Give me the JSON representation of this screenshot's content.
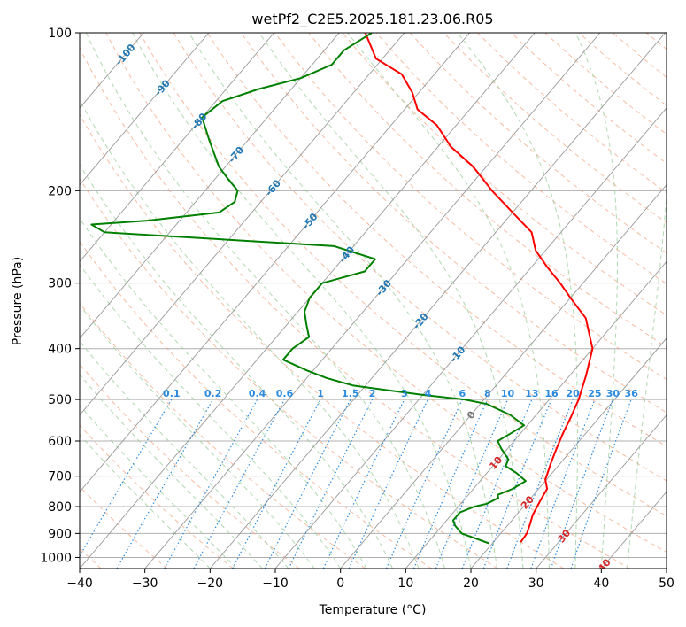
{
  "chart_data": {
    "type": "line",
    "title": "wetPf2_C2E5.2025.181.23.06.R05",
    "xlabel": "Temperature (°C)",
    "ylabel": "Pressure (hPa)",
    "xlim": [
      -40,
      50
    ],
    "ylim": [
      1050,
      100
    ],
    "y_scale": "log",
    "x_ticks": [
      -40,
      -30,
      -20,
      -10,
      0,
      10,
      20,
      30,
      40,
      50
    ],
    "y_ticks": [
      100,
      200,
      300,
      400,
      500,
      600,
      700,
      800,
      900,
      1000
    ],
    "grid": true,
    "skew": "skew-T log-p diagram",
    "series": [
      {
        "name": "",
        "color": "#ff0000",
        "points": [
          [
            24.2,
            935
          ],
          [
            24,
            900
          ],
          [
            23.3,
            865
          ],
          [
            22.5,
            830
          ],
          [
            21.8,
            780
          ],
          [
            21.3,
            740
          ],
          [
            19.8,
            710
          ],
          [
            19.3,
            690
          ],
          [
            18.5,
            660
          ],
          [
            17.5,
            620
          ],
          [
            16.5,
            580
          ],
          [
            15.6,
            540
          ],
          [
            14.5,
            500
          ],
          [
            12.5,
            450
          ],
          [
            10,
            400
          ],
          [
            5,
            350
          ],
          [
            0,
            320
          ],
          [
            -3.5,
            300
          ],
          [
            -7.5,
            280
          ],
          [
            -11.5,
            260
          ],
          [
            -14.5,
            240
          ],
          [
            -20,
            220
          ],
          [
            -26,
            200
          ],
          [
            -32,
            180
          ],
          [
            -38,
            165
          ],
          [
            -43,
            150
          ],
          [
            -48,
            140
          ],
          [
            -51,
            130
          ],
          [
            -55,
            120
          ],
          [
            -61,
            112
          ],
          [
            -66,
            100
          ]
        ]
      },
      {
        "name": "",
        "color": "#008000",
        "points": [
          [
            19.5,
            940
          ],
          [
            14,
            900
          ],
          [
            12,
            870
          ],
          [
            11,
            850
          ],
          [
            11,
            820
          ],
          [
            12.5,
            800
          ],
          [
            14,
            790
          ],
          [
            15,
            770
          ],
          [
            14.5,
            760
          ],
          [
            16,
            740
          ],
          [
            17,
            715
          ],
          [
            14.5,
            690
          ],
          [
            12,
            670
          ],
          [
            11.5,
            650
          ],
          [
            9,
            620
          ],
          [
            7.5,
            600
          ],
          [
            8.5,
            580
          ],
          [
            9.5,
            560
          ],
          [
            6,
            535
          ],
          [
            1,
            510
          ],
          [
            -3,
            500
          ],
          [
            -10,
            490
          ],
          [
            -16,
            480
          ],
          [
            -22,
            470
          ],
          [
            -27,
            455
          ],
          [
            -31,
            440
          ],
          [
            -36,
            420
          ],
          [
            -36,
            400
          ],
          [
            -35,
            380
          ],
          [
            -37,
            360
          ],
          [
            -39,
            340
          ],
          [
            -40,
            320
          ],
          [
            -40,
            300
          ],
          [
            -35,
            285
          ],
          [
            -35,
            270
          ],
          [
            -43,
            255
          ],
          [
            -80,
            240
          ],
          [
            -83,
            232
          ],
          [
            -75,
            228
          ],
          [
            -65,
            220
          ],
          [
            -64,
            210
          ],
          [
            -65,
            200
          ],
          [
            -68,
            190
          ],
          [
            -71,
            180
          ],
          [
            -76,
            160
          ],
          [
            -80,
            145
          ],
          [
            -79,
            135
          ],
          [
            -75,
            128
          ],
          [
            -70,
            122
          ],
          [
            -67,
            115
          ],
          [
            -67,
            108
          ],
          [
            -65,
            100
          ]
        ]
      }
    ],
    "isotherm_labels": [
      "-100",
      "-90",
      "-80",
      "-70",
      "-60",
      "-50",
      "-40",
      "-30",
      "-20",
      "-10",
      "0",
      "10",
      "20",
      "30",
      "40"
    ],
    "mixing_ratio_labels": [
      "0.1",
      "0.2",
      "0.4",
      "0.6",
      "1",
      "1.5",
      "2",
      "3",
      "4",
      "6",
      "8",
      "10",
      "13",
      "16",
      "20",
      "25",
      "30",
      "36"
    ]
  }
}
